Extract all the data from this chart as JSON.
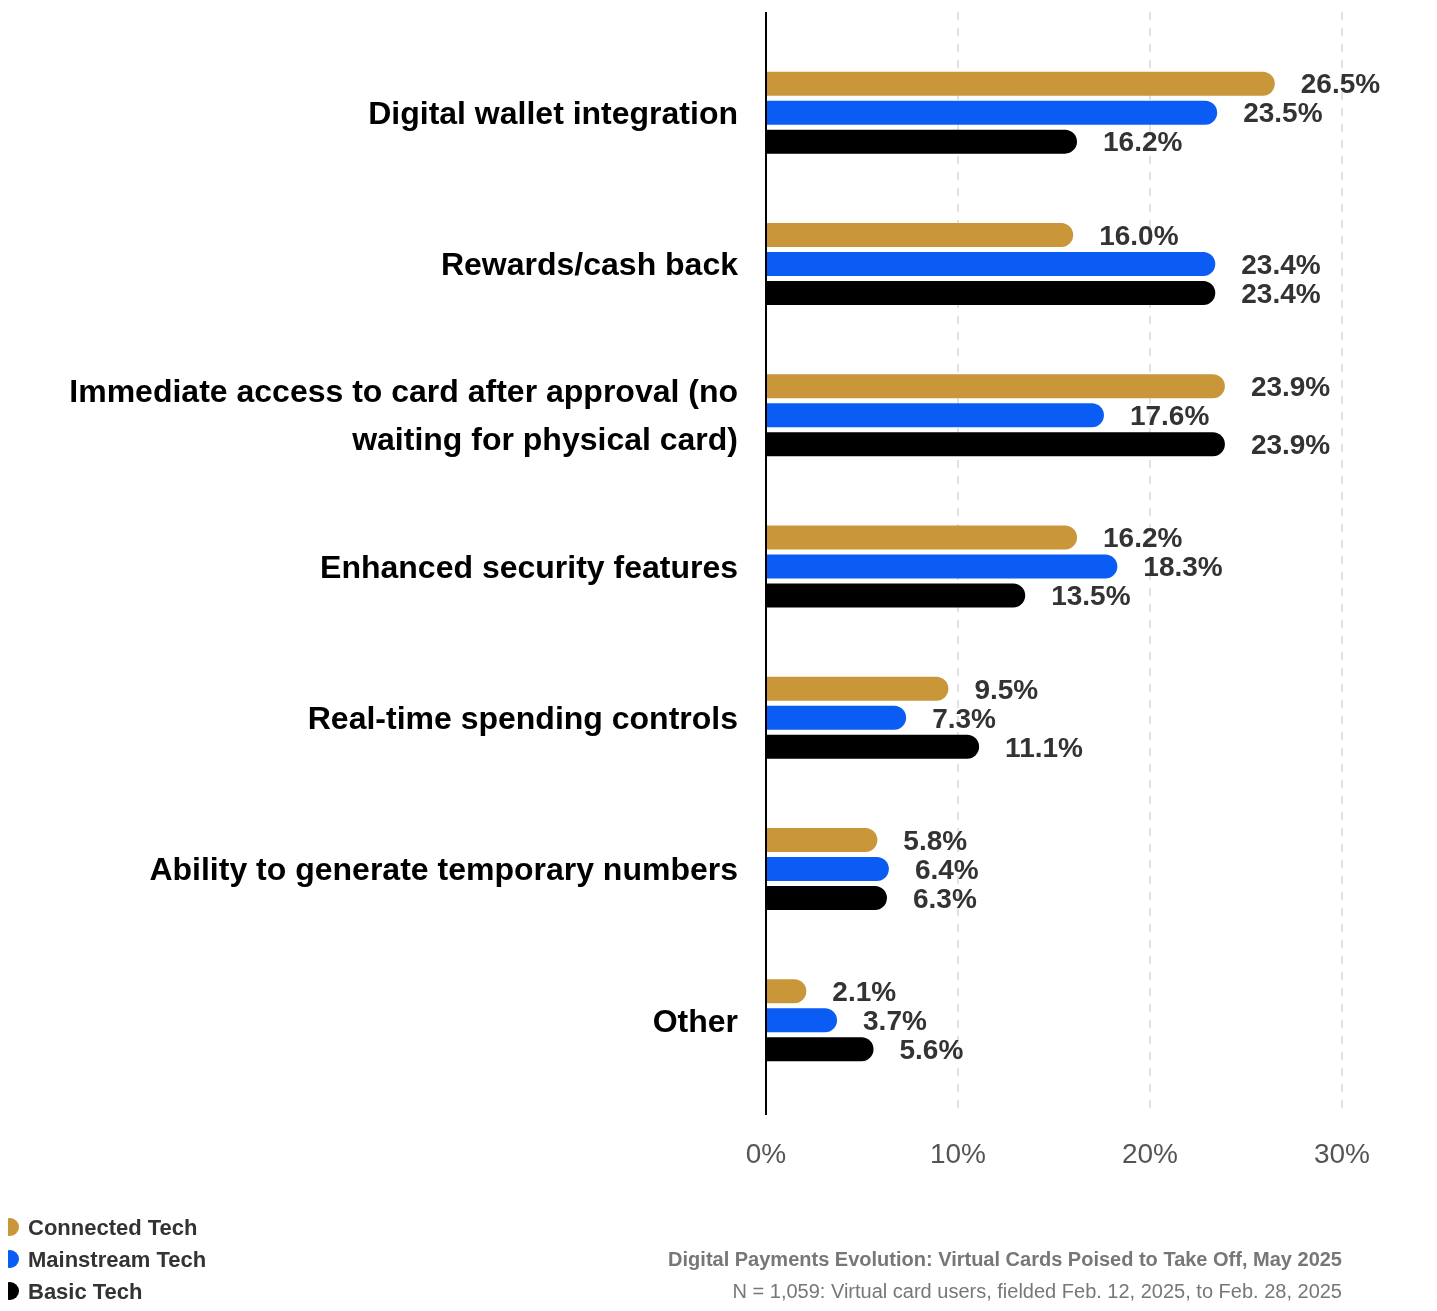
{
  "chart_data": {
    "type": "bar",
    "orientation": "horizontal",
    "categories": [
      "Digital wallet integration",
      "Rewards/cash back",
      "Immediate access to card after approval (no waiting for physical card)",
      "Enhanced security features",
      "Real-time spending controls",
      "Ability to generate temporary numbers",
      "Other"
    ],
    "series": [
      {
        "name": "Connected Tech",
        "color": "#c9973a",
        "values": [
          26.5,
          16.0,
          23.9,
          16.2,
          9.5,
          5.8,
          2.1
        ],
        "value_labels": [
          "26.5%",
          "16.0%",
          "23.9%",
          "16.2%",
          "9.5%",
          "5.8%",
          "2.1%"
        ]
      },
      {
        "name": "Mainstream Tech",
        "color": "#0a5cf5",
        "values": [
          23.5,
          23.4,
          17.6,
          18.3,
          7.3,
          6.4,
          3.7
        ],
        "value_labels": [
          "23.5%",
          "23.4%",
          "17.6%",
          "18.3%",
          "7.3%",
          "6.4%",
          "3.7%"
        ]
      },
      {
        "name": "Basic Tech",
        "color": "#000000",
        "values": [
          16.2,
          23.4,
          23.9,
          13.5,
          11.1,
          6.3,
          5.6
        ],
        "value_labels": [
          "16.2%",
          "23.4%",
          "23.9%",
          "13.5%",
          "11.1%",
          "6.3%",
          "5.6%"
        ]
      }
    ],
    "xlim": [
      0,
      30
    ],
    "xticks": [
      {
        "value": 0,
        "label": "0%"
      },
      {
        "value": 10,
        "label": "10%"
      },
      {
        "value": 20,
        "label": "20%"
      },
      {
        "value": 30,
        "label": "30%"
      }
    ],
    "grid": "x",
    "legend": "bottom left",
    "annotations": [
      "Digital Payments Evolution: Virtual Cards Poised to Take Off, May 2025",
      "N = 1,059: Virtual card users, fielded Feb. 12, 2025, to Feb. 28, 2025"
    ]
  }
}
